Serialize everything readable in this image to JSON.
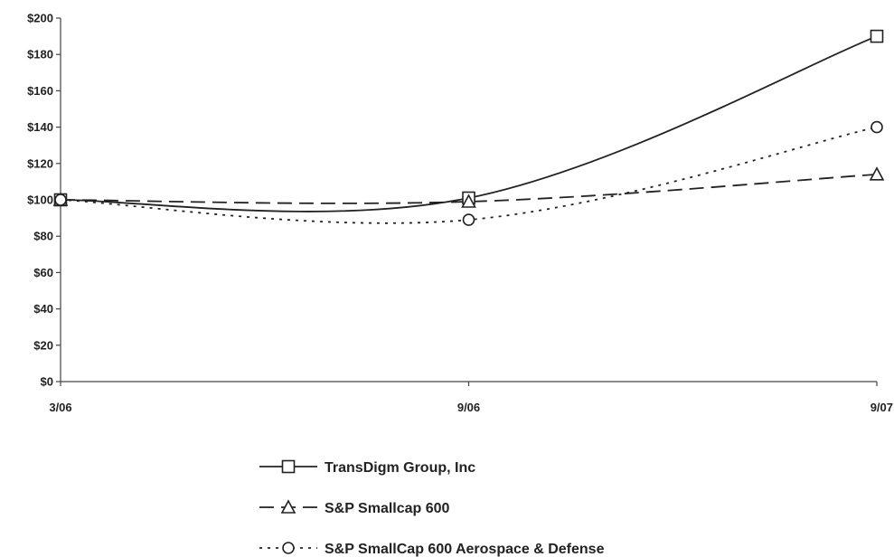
{
  "chart_data": {
    "type": "line",
    "title": "",
    "xlabel": "",
    "ylabel": "",
    "categories": [
      "3/06",
      "9/06",
      "9/07"
    ],
    "ylim": [
      0,
      200
    ],
    "yticks": [
      0,
      20,
      40,
      60,
      80,
      100,
      120,
      140,
      160,
      180,
      200
    ],
    "ytick_labels": [
      "$0",
      "$20",
      "$40",
      "$60",
      "$80",
      "$100",
      "$120",
      "$140",
      "$160",
      "$180",
      "$200"
    ],
    "grid": false,
    "legend": "bottom",
    "series": [
      {
        "name": "TransDigm Group, Inc",
        "values": [
          100,
          101,
          190
        ],
        "marker": "square",
        "line_style": "solid",
        "color": "#222222"
      },
      {
        "name": "S&P Smallcap 600",
        "values": [
          100,
          99,
          114
        ],
        "marker": "triangle",
        "line_style": "dashed",
        "color": "#222222"
      },
      {
        "name": "S&P SmallCap 600 Aerospace & Defense",
        "values": [
          100,
          89,
          140
        ],
        "marker": "circle",
        "line_style": "dotted",
        "color": "#222222"
      }
    ]
  }
}
